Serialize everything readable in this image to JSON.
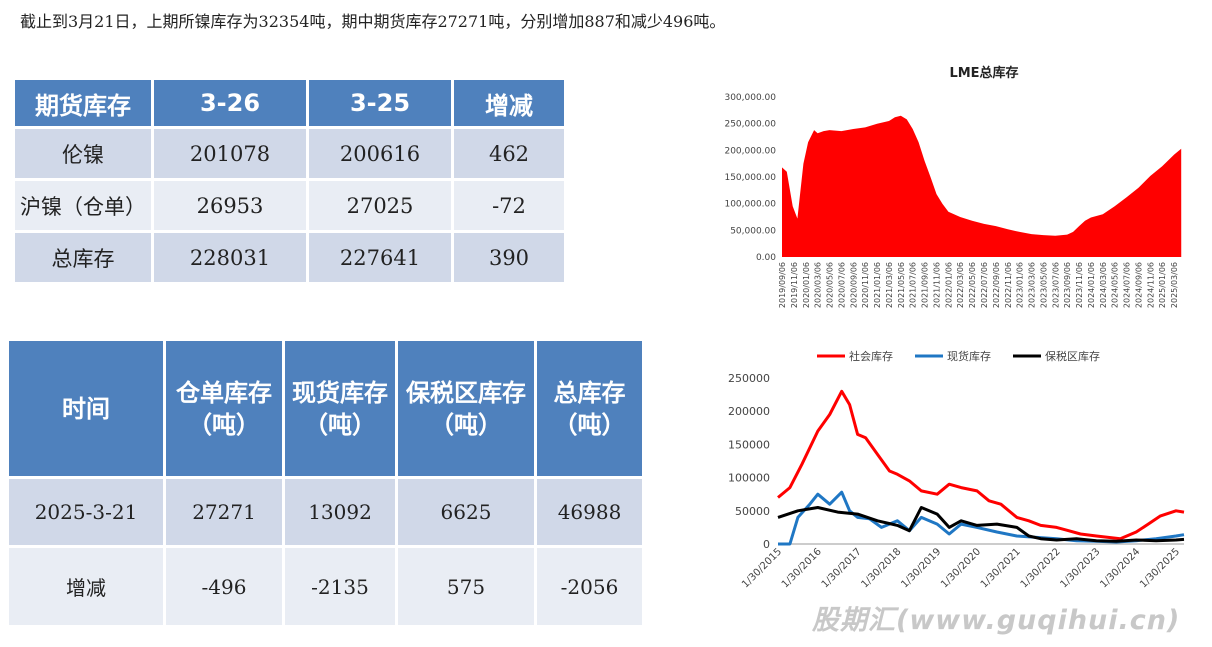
{
  "headline": "截止到3月21日，上期所镍库存为32354吨，期中期货库存27271吨，分别增加887和减少496吨。",
  "futures_table": {
    "headers": [
      "期货库存",
      "3-26",
      "3-25",
      "增减"
    ],
    "rows": [
      [
        "伦镍",
        "201078",
        "200616",
        "462"
      ],
      [
        "沪镍（仓单）",
        "26953",
        "27025",
        "-72"
      ],
      [
        "总库存",
        "228031",
        "227641",
        "390"
      ]
    ]
  },
  "domestic_table": {
    "headers": [
      "时间",
      "仓单库存（吨）",
      "现货库存（吨）",
      "保税区库存（吨）",
      "总库存（吨）"
    ],
    "rows": [
      [
        "2025-3-21",
        "27271",
        "13092",
        "6625",
        "46988"
      ],
      [
        "增减",
        "-496",
        "-2135",
        "575",
        "-2056"
      ]
    ]
  },
  "watermark": "股期汇(www.guqihui.cn)",
  "chart_data": [
    {
      "type": "area",
      "title": "LME总库存",
      "color": "#ff0000",
      "ylim": [
        0,
        300000
      ],
      "yticks": [
        "0.00",
        "50,000.00",
        "100,000.00",
        "150,000.00",
        "200,000.00",
        "250,000.00",
        "300,000.00"
      ],
      "xticks": [
        "2019/09/06",
        "2019/11/06",
        "2020/01/06",
        "2020/03/06",
        "2020/05/06",
        "2020/07/06",
        "2020/09/06",
        "2020/11/06",
        "2021/01/06",
        "2021/03/06",
        "2021/05/06",
        "2021/07/06",
        "2021/09/06",
        "2021/11/06",
        "2022/01/06",
        "2022/03/06",
        "2022/05/06",
        "2022/07/06",
        "2022/09/06",
        "2022/11/06",
        "2023/01/06",
        "2023/03/06",
        "2023/05/06",
        "2023/07/06",
        "2023/09/06",
        "2023/11/06",
        "2024/01/06",
        "2024/03/06",
        "2024/05/06",
        "2024/07/06",
        "2024/09/06",
        "2024/11/06",
        "2025/01/06",
        "2025/03/06"
      ],
      "x_range": [
        0,
        34
      ],
      "x": [
        0,
        0.4,
        0.9,
        1.3,
        1.8,
        2.2,
        2.7,
        3.0,
        3.5,
        4,
        5,
        6,
        7,
        8,
        9,
        9.5,
        10,
        10.5,
        11,
        11.5,
        12,
        12.5,
        13,
        13.5,
        14,
        15,
        16,
        17,
        18,
        19,
        20,
        21,
        22,
        23,
        24,
        24.5,
        25,
        25.5,
        26,
        27,
        28,
        29,
        30,
        31,
        32,
        33,
        33.6
      ],
      "y": [
        168000,
        160000,
        95000,
        72000,
        175000,
        215000,
        238000,
        232000,
        236000,
        238000,
        236000,
        240000,
        243000,
        250000,
        255000,
        262000,
        265000,
        258000,
        240000,
        215000,
        180000,
        150000,
        118000,
        100000,
        85000,
        75000,
        68000,
        62000,
        58000,
        52000,
        47000,
        43000,
        41000,
        40000,
        42000,
        47000,
        58000,
        68000,
        74000,
        80000,
        95000,
        112000,
        130000,
        152000,
        170000,
        192000,
        203000
      ]
    },
    {
      "type": "line",
      "ylim": [
        0,
        250000
      ],
      "yticks": [
        "0",
        "50000",
        "100000",
        "150000",
        "200000",
        "250000"
      ],
      "xticks": [
        "1/30/2015",
        "1/30/2016",
        "1/30/2017",
        "1/30/2018",
        "1/30/2019",
        "1/30/2020",
        "1/30/2021",
        "1/30/2022",
        "1/30/2023",
        "1/30/2024",
        "1/30/2025"
      ],
      "x_range": [
        0,
        10.2
      ],
      "series": [
        {
          "name": "社会库存",
          "color": "#ff0000",
          "x": [
            0,
            0.3,
            0.6,
            1.0,
            1.3,
            1.6,
            1.8,
            2.0,
            2.2,
            2.5,
            2.8,
            3.0,
            3.3,
            3.6,
            4.0,
            4.3,
            4.6,
            5.0,
            5.3,
            5.6,
            6.0,
            6.3,
            6.6,
            7.0,
            7.3,
            7.6,
            8.0,
            8.3,
            8.6,
            9.0,
            9.3,
            9.6,
            10.0,
            10.2
          ],
          "y": [
            70000,
            85000,
            120000,
            170000,
            195000,
            230000,
            210000,
            165000,
            160000,
            135000,
            110000,
            105000,
            95000,
            80000,
            75000,
            90000,
            85000,
            80000,
            65000,
            60000,
            40000,
            35000,
            28000,
            25000,
            20000,
            15000,
            12000,
            10000,
            8000,
            18000,
            30000,
            42000,
            50000,
            48000
          ]
        },
        {
          "name": "现货库存",
          "color": "#1f77c4",
          "x": [
            0,
            0.3,
            0.5,
            0.8,
            1.0,
            1.3,
            1.6,
            1.8,
            2.0,
            2.3,
            2.6,
            3.0,
            3.3,
            3.6,
            4.0,
            4.3,
            4.6,
            5.0,
            5.5,
            6.0,
            6.5,
            7.0,
            7.5,
            8.0,
            8.5,
            9.0,
            9.5,
            10.0,
            10.2
          ],
          "y": [
            0,
            0,
            40000,
            60000,
            75000,
            60000,
            78000,
            50000,
            40000,
            38000,
            25000,
            35000,
            20000,
            40000,
            30000,
            15000,
            30000,
            25000,
            18000,
            12000,
            10000,
            8000,
            5000,
            4000,
            3000,
            5000,
            8000,
            12000,
            14000
          ]
        },
        {
          "name": "保税区库存",
          "color": "#000000",
          "x": [
            0,
            0.5,
            1.0,
            1.5,
            2.0,
            2.5,
            3.0,
            3.3,
            3.6,
            4.0,
            4.3,
            4.6,
            5.0,
            5.5,
            6.0,
            6.3,
            6.6,
            7.0,
            7.5,
            8.0,
            8.5,
            9.0,
            9.5,
            10.0,
            10.2
          ],
          "y": [
            40000,
            50000,
            55000,
            48000,
            45000,
            35000,
            28000,
            20000,
            55000,
            45000,
            25000,
            35000,
            28000,
            30000,
            25000,
            12000,
            8000,
            6000,
            8000,
            5000,
            4000,
            6000,
            5000,
            6000,
            7000
          ]
        }
      ]
    }
  ]
}
